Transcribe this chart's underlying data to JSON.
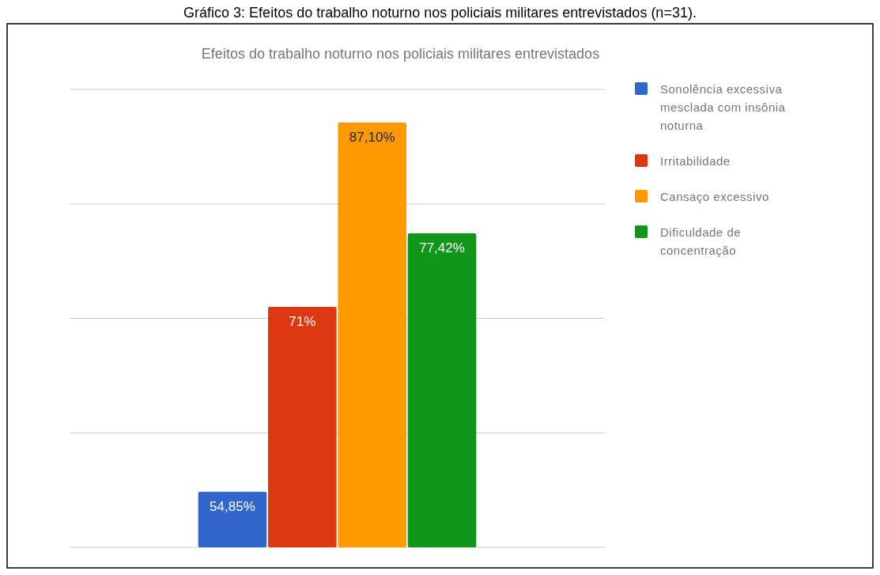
{
  "chart_data": {
    "type": "bar",
    "title": "Efeitos do trabalho noturno nos policiais militares entrevistados",
    "annotations": [
      "Gráfico 3: Efeitos do trabalho noturno nos policiais militares entrevistados (n=31)."
    ],
    "categories": [
      null
    ],
    "series": [
      {
        "name": "Sonolência excessiva mesclada com insônia noturna",
        "color": "#3366cc",
        "values": [
          54.85
        ],
        "value_labels": [
          "54,85%"
        ]
      },
      {
        "name": "Irritabilidade",
        "color": "#dc3912",
        "values": [
          71
        ],
        "value_labels": [
          "71%"
        ]
      },
      {
        "name": "Cansaço excessivo",
        "color": "#ff9900",
        "values": [
          87.1
        ],
        "value_labels": [
          "87,10%"
        ]
      },
      {
        "name": "Dificuldade de concentração",
        "color": "#109618",
        "values": [
          77.42
        ],
        "value_labels": [
          "77,42%"
        ]
      }
    ],
    "ylim": [
      50,
      90
    ],
    "yticks": [
      {
        "value": 50,
        "label": null
      },
      {
        "value": 60,
        "label": null
      },
      {
        "value": 70,
        "label": null
      },
      {
        "value": 80,
        "label": null
      },
      {
        "value": 90,
        "label": null
      }
    ],
    "grid": "y",
    "legend": "right"
  }
}
